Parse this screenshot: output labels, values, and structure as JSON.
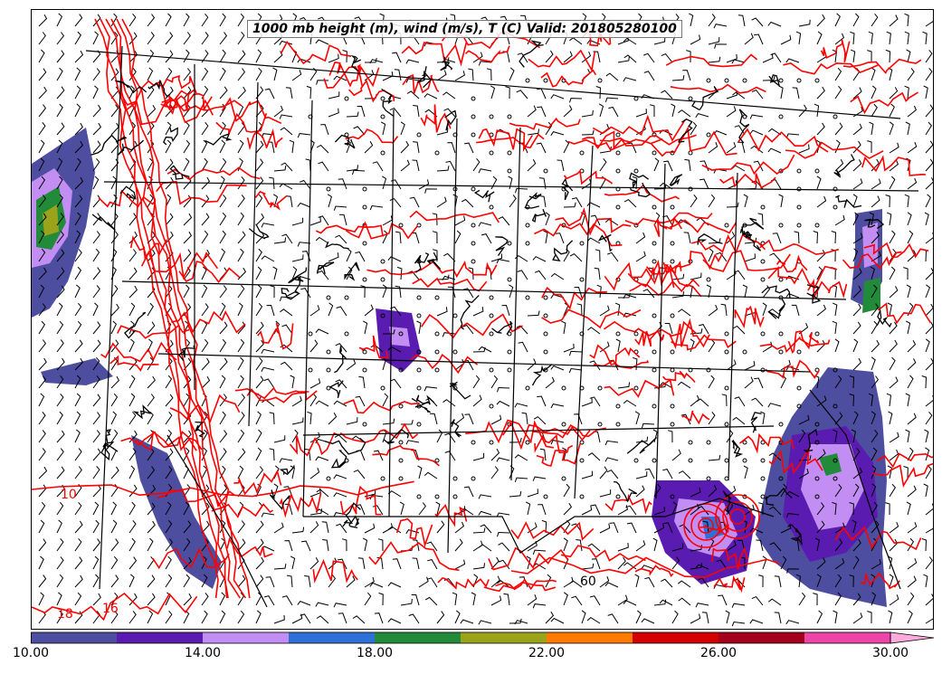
{
  "title": "1000 mb height (m), wind (m/s), T (C) Valid: 201805280100",
  "colorbar": {
    "min": 10,
    "max": 30,
    "step": 2,
    "extend": "max",
    "colors": [
      "#4e4ea0",
      "#5a1cb0",
      "#c38ef4",
      "#2f6fd8",
      "#228b3a",
      "#9aa31a",
      "#ff7a00",
      "#d40000",
      "#a4001e",
      "#ee45a8",
      "#ffaadd"
    ],
    "ticks": [
      "10.00",
      "14.00",
      "18.00",
      "22.00",
      "26.00",
      "30.00"
    ]
  },
  "contour_labels": [
    "10",
    "16",
    "18",
    "60"
  ],
  "colors": {
    "temperature_contour": "#ff0000",
    "height_contour": "#000000",
    "borders": "#000000",
    "wind_barbs": "#000000"
  }
}
